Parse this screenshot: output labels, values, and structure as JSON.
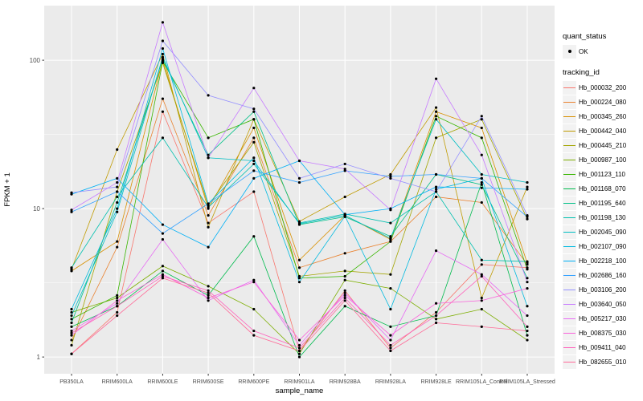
{
  "figure": {
    "background": "#FFFFFF",
    "panel_bg": "#EBEBEB",
    "grid_color": "#FFFFFF",
    "tick_text_color": "#4D4D4D",
    "axis_title_color": "#000000",
    "point_color": "#000000"
  },
  "chart_data": {
    "type": "line",
    "title": "",
    "xlabel": "sample_name",
    "ylabel": "FPKM + 1",
    "y_scale": "log10",
    "y_ticks": [
      1,
      10,
      100
    ],
    "y_tick_labels": [
      "1",
      "10",
      "100"
    ],
    "y_minor_ticks": [
      3.1623,
      31.623
    ],
    "ylim": [
      1,
      200
    ],
    "grid": true,
    "legend_position": "right",
    "categories": [
      "PB350LA",
      "RRIM600LA",
      "RRIM600LE",
      "RRIM600SE",
      "RRIM600PE",
      "RRIM901LA",
      "RRIM928BA",
      "RRIM928LA",
      "RRIM928LE",
      "RRIM105LA_Control",
      "RRIM105LA_Stressed"
    ],
    "series": [
      {
        "name": "Hb_000032_200",
        "color": "#F8766D",
        "values": [
          1.05,
          2.0,
          45,
          8.0,
          13,
          1.1,
          2.8,
          1.15,
          2.0,
          4.2,
          4.0
        ]
      },
      {
        "name": "Hb_000224_080",
        "color": "#EA8331",
        "values": [
          1.3,
          5.5,
          55,
          9.0,
          30,
          4.0,
          5.0,
          6.0,
          12,
          11,
          4.2
        ]
      },
      {
        "name": "Hb_000345_260",
        "color": "#D89000",
        "values": [
          3.8,
          6.0,
          100,
          10,
          35,
          4.5,
          9.0,
          6.2,
          45,
          35,
          4.3
        ]
      },
      {
        "name": "Hb_000442_040",
        "color": "#C09B00",
        "values": [
          3.9,
          25,
          110,
          7.5,
          40,
          8.2,
          12,
          17,
          48,
          2.5,
          14
        ]
      },
      {
        "name": "Hb_000445_210",
        "color": "#A3A500",
        "values": [
          1.2,
          13,
          96,
          10.5,
          28,
          3.5,
          3.8,
          3.6,
          30,
          40,
          8.5
        ]
      },
      {
        "name": "Hb_000987_100",
        "color": "#7CAE00",
        "values": [
          2.0,
          2.5,
          4.1,
          3.0,
          2.1,
          1.05,
          3.3,
          2.9,
          1.8,
          2.1,
          1.3
        ]
      },
      {
        "name": "Hb_001123_110",
        "color": "#39B600",
        "values": [
          1.8,
          2.6,
          98,
          30,
          40,
          3.4,
          3.5,
          6.0,
          42,
          30,
          3.9
        ]
      },
      {
        "name": "Hb_001168_070",
        "color": "#00BB4E",
        "values": [
          1.6,
          2.2,
          3.8,
          2.6,
          6.5,
          1.0,
          2.2,
          1.6,
          1.9,
          15,
          1.4
        ]
      },
      {
        "name": "Hb_001195_640",
        "color": "#00C087",
        "values": [
          1.7,
          11,
          102,
          23,
          45,
          7.8,
          8.8,
          6.5,
          17,
          14.5,
          3.4
        ]
      },
      {
        "name": "Hb_001198_130",
        "color": "#00C0AF",
        "values": [
          4.0,
          12,
          30,
          10.2,
          20,
          8.0,
          9.2,
          8.0,
          13,
          4.5,
          4.4
        ]
      },
      {
        "name": "Hb_002045_090",
        "color": "#00BFC4",
        "values": [
          1.9,
          9.5,
          105,
          22,
          21,
          7.9,
          9.0,
          6.3,
          40,
          17,
          15
        ]
      },
      {
        "name": "Hb_002107_090",
        "color": "#00BAE0",
        "values": [
          2.1,
          10,
          120,
          10.8,
          22,
          3.2,
          8.9,
          2.1,
          13.5,
          16,
          2.2
        ]
      },
      {
        "name": "Hb_002218_100",
        "color": "#00B0F6",
        "values": [
          12.5,
          16,
          7.8,
          5.5,
          16,
          21,
          9.1,
          10,
          14,
          13.8,
          13.5
        ]
      },
      {
        "name": "Hb_002686_160",
        "color": "#35A2FF",
        "values": [
          9.5,
          13,
          6.8,
          10.8,
          18,
          15,
          18,
          16.5,
          17,
          16,
          8.8
        ]
      },
      {
        "name": "Hb_003106_200",
        "color": "#9590FF",
        "values": [
          12.8,
          14,
          135,
          58,
          47,
          16,
          20,
          16,
          13,
          42,
          9.0
        ]
      },
      {
        "name": "Hb_003640_050",
        "color": "#C77CFF",
        "values": [
          9.8,
          15,
          180,
          22,
          65,
          21,
          18.5,
          9.8,
          75,
          23,
          3.2
        ]
      },
      {
        "name": "Hb_005217_030",
        "color": "#E76BF3",
        "values": [
          1.5,
          2.3,
          6.2,
          2.4,
          3.3,
          1.2,
          2.7,
          1.3,
          5.2,
          3.6,
          1.9
        ]
      },
      {
        "name": "Hb_008375_030",
        "color": "#FA62DB",
        "values": [
          1.4,
          2.4,
          3.6,
          2.5,
          3.2,
          1.3,
          2.6,
          1.4,
          2.3,
          2.4,
          2.9
        ]
      },
      {
        "name": "Hb_009411_040",
        "color": "#FF62BC",
        "values": [
          1.45,
          2.2,
          3.5,
          2.8,
          1.5,
          1.15,
          2.5,
          1.2,
          1.9,
          3.5,
          1.6
        ]
      },
      {
        "name": "Hb_082655_010",
        "color": "#FF6A98",
        "values": [
          1.05,
          1.9,
          3.4,
          2.7,
          1.4,
          1.1,
          2.4,
          1.1,
          1.7,
          1.6,
          1.5
        ]
      }
    ],
    "legend": {
      "quant_status_title": "quant_status",
      "quant_status_items": [
        {
          "label": "OK",
          "shape": "point"
        }
      ],
      "tracking_title": "tracking_id"
    }
  }
}
